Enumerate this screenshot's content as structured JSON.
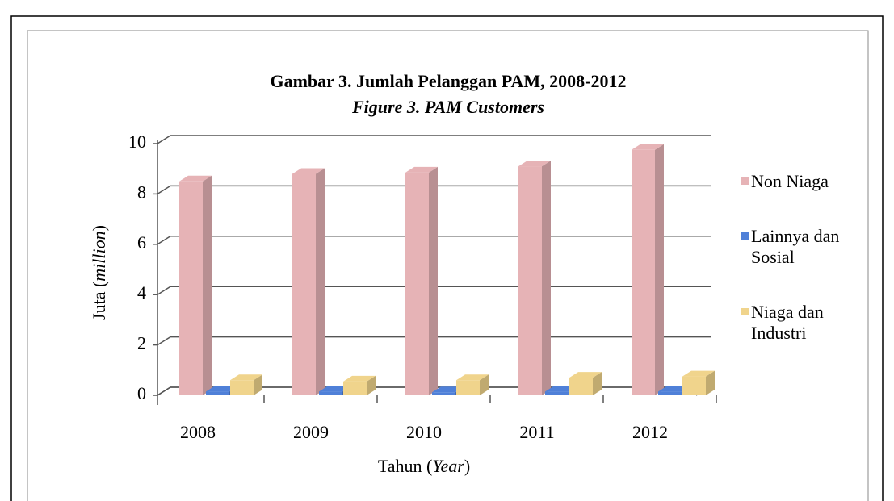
{
  "chart_data": {
    "type": "bar3d",
    "title": "Gambar 3. Jumlah Pelanggan PAM, 2008-2012",
    "subtitle": "Figure 3. PAM Customers",
    "ylabel": [
      "Juta (",
      "million",
      ")"
    ],
    "xlabel": [
      "Tahun (",
      "Year",
      ")"
    ],
    "categories": [
      "2008",
      "2009",
      "2010",
      "2011",
      "2012"
    ],
    "series": [
      {
        "name": "Non Niaga",
        "color": "#e6b3b6",
        "values": [
          8.5,
          8.8,
          8.85,
          9.1,
          9.75
        ]
      },
      {
        "name": "Lainnya dan Sosial",
        "color": "#4f80d8",
        "values": [
          0.15,
          0.15,
          0.12,
          0.15,
          0.15
        ]
      },
      {
        "name": "Niaga dan Industri",
        "color": "#f0d48c",
        "values": [
          0.6,
          0.55,
          0.6,
          0.7,
          0.75
        ]
      }
    ],
    "ylim": [
      0,
      10
    ],
    "yticks": [
      0,
      2,
      4,
      6,
      8,
      10
    ],
    "grid": true,
    "legend": "right"
  }
}
